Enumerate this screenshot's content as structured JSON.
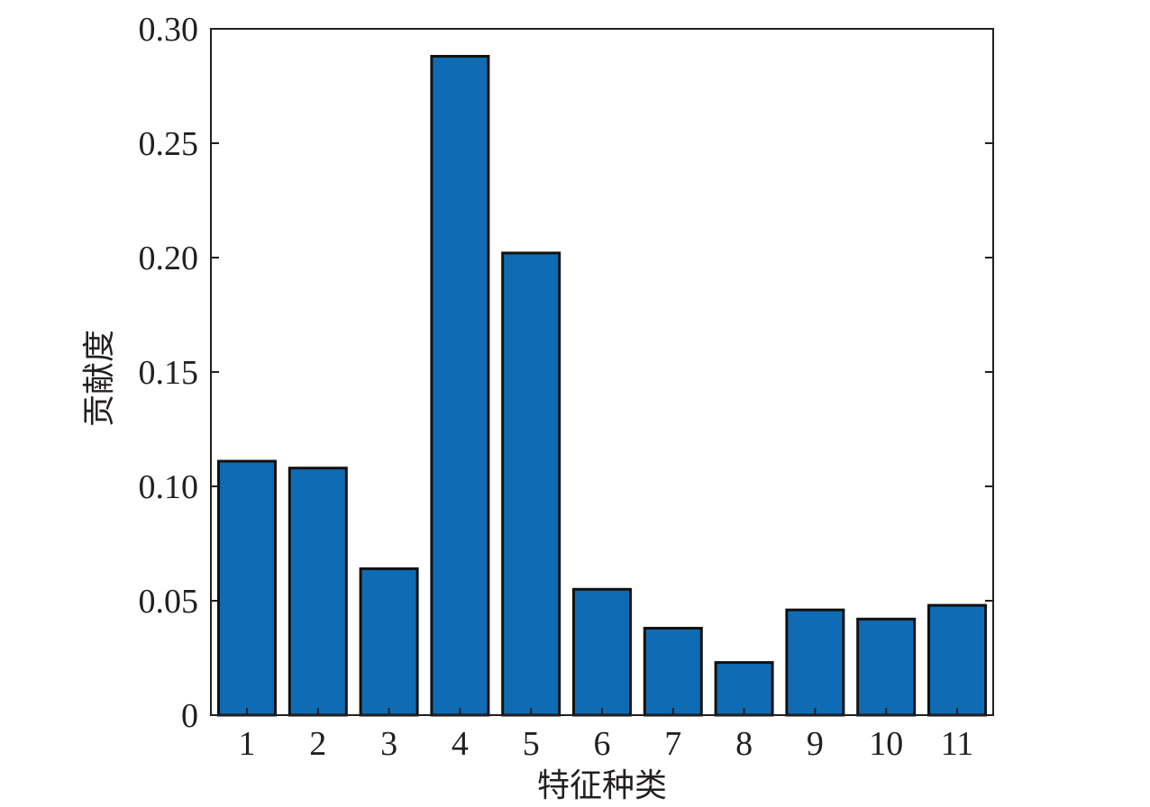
{
  "chart_data": {
    "type": "bar",
    "title": "",
    "xlabel": "特征种类",
    "ylabel": "贡献度",
    "categories": [
      "1",
      "2",
      "3",
      "4",
      "5",
      "6",
      "7",
      "8",
      "9",
      "10",
      "11"
    ],
    "values": [
      0.111,
      0.108,
      0.064,
      0.288,
      0.202,
      0.055,
      0.038,
      0.023,
      0.046,
      0.042,
      0.048
    ],
    "ylim": [
      0,
      0.3
    ],
    "yticks": [
      "0",
      "0.05",
      "0.10",
      "0.15",
      "0.20",
      "0.25",
      "0.30"
    ],
    "ytick_values": [
      0,
      0.05,
      0.1,
      0.15,
      0.2,
      0.25,
      0.3
    ],
    "grid": false,
    "legend": "none",
    "bar_color": "#0f6cb4",
    "bar_edge_color": "#111111",
    "axis_color": "#231f20"
  }
}
